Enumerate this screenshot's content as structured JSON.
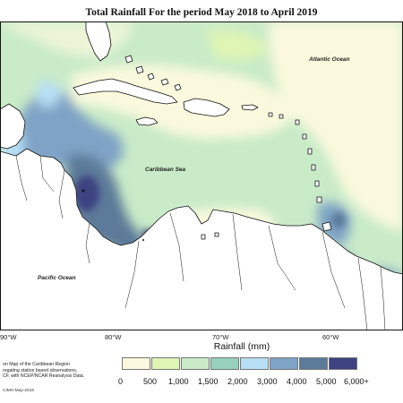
{
  "title": "Total Rainfall For the period May 2018 to April 2019",
  "labels": {
    "atlantic": "Atlantic Ocean",
    "caribbean": "Caribbean Sea",
    "pacific": "Pacific Ocean"
  },
  "longitude_ticks": [
    "90°W",
    "80°W",
    "70°W",
    "60°W"
  ],
  "legend": {
    "title": "Rainfall (mm)",
    "levels": [
      "0",
      "500",
      "1,000",
      "1,500",
      "2,000",
      "3,000",
      "4,000",
      "5,000",
      "6,000+"
    ],
    "colors": [
      "#fbf9dd",
      "#dff5b4",
      "#c9ebc8",
      "#97d1bd",
      "#b7dff6",
      "#7fa3c6",
      "#5c7a99",
      "#3e4381"
    ]
  },
  "note": "on Map of the Caribbean Region\nregating station based observations,\nCF, with NCEP/NCAR Reanalysis Data.",
  "credit": "CIMH May-2019"
}
